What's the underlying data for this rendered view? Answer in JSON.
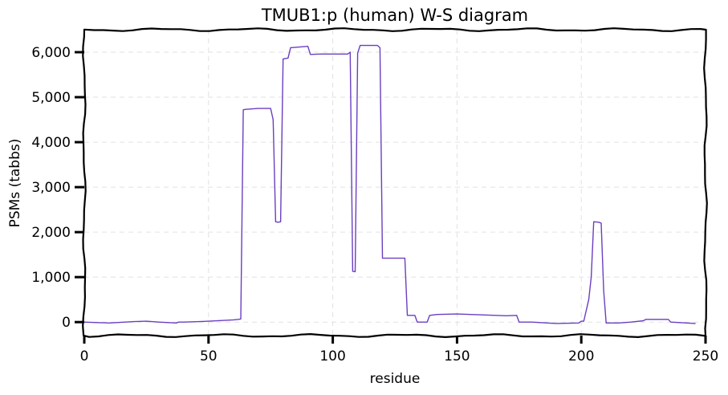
{
  "chart_data": {
    "type": "line",
    "title": "TMUB1:p (human) W-S diagram",
    "xlabel": "residue",
    "ylabel": "PSMs (tabbs)",
    "xlim": [
      0,
      250
    ],
    "ylim": [
      -300,
      6500
    ],
    "xticks": [
      0,
      50,
      100,
      150,
      200,
      250
    ],
    "xtick_labels": [
      "0",
      "50",
      "100",
      "150",
      "200",
      "250"
    ],
    "yticks": [
      0,
      1000,
      2000,
      3000,
      4000,
      5000,
      6000
    ],
    "ytick_labels": [
      "0",
      "1,000",
      "2,000",
      "3,000",
      "4,000",
      "5,000",
      "6,000"
    ],
    "grid": true,
    "colors": {
      "series": "#6a3fc1"
    },
    "series": [
      {
        "color": "#6a3fc1",
        "x": [
          0,
          10,
          20,
          25,
          30,
          37,
          38,
          40,
          50,
          60,
          62,
          63,
          64,
          65,
          70,
          75,
          76,
          77,
          78,
          79,
          80,
          82,
          83,
          90,
          91,
          95,
          100,
          106,
          107,
          108,
          109,
          110,
          111,
          115,
          118,
          119,
          120,
          125,
          129,
          130,
          133,
          134,
          138,
          139,
          142,
          150,
          160,
          170,
          174,
          175,
          180,
          190,
          199,
          200,
          201,
          203,
          204,
          205,
          207,
          208,
          209,
          210,
          211,
          215,
          220,
          225,
          226,
          229,
          230,
          235,
          236,
          246
        ],
        "y": [
          0,
          -20,
          10,
          20,
          0,
          -20,
          0,
          0,
          20,
          50,
          60,
          70,
          4720,
          4730,
          4750,
          4750,
          4500,
          2230,
          2220,
          2230,
          5850,
          5870,
          6100,
          6130,
          5950,
          5960,
          5960,
          5960,
          6000,
          1130,
          1120,
          5980,
          6150,
          6150,
          6150,
          6100,
          1420,
          1420,
          1420,
          150,
          150,
          0,
          0,
          150,
          170,
          180,
          160,
          140,
          150,
          0,
          0,
          -30,
          -20,
          20,
          20,
          500,
          1000,
          2230,
          2220,
          2200,
          700,
          -20,
          -20,
          -20,
          0,
          30,
          60,
          60,
          60,
          60,
          0,
          -30
        ]
      }
    ]
  }
}
